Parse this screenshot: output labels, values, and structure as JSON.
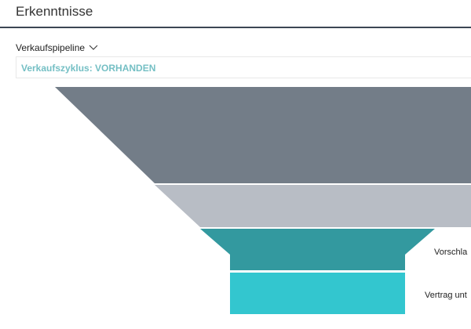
{
  "header": {
    "title": "Erkenntnisse"
  },
  "pipeline": {
    "selected": "Verkaufspipeline",
    "dropdown_icon": "chevron-down-icon"
  },
  "filter": {
    "text": "Verkaufszyklus: VORHANDEN"
  },
  "colors": {
    "header_rule": "#3c4654",
    "filter_text": "#74bfc4",
    "stage_1": "#737d88",
    "stage_2": "#b8bdc5",
    "stage_3": "#33999f",
    "stage_4": "#33c6cf"
  },
  "funnel": {
    "stages": [
      {
        "label": "",
        "color": "#737d88"
      },
      {
        "label": "",
        "color": "#b8bdc5"
      },
      {
        "label": "Vorschla",
        "color": "#33999f"
      },
      {
        "label": "Vertrag unt",
        "color": "#33c6cf"
      }
    ]
  }
}
